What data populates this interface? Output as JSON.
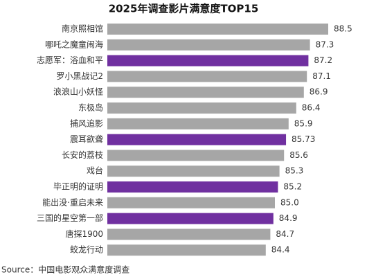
{
  "chart_data": {
    "type": "bar",
    "orientation": "horizontal",
    "title": "2025年调查影片满意度TOP15",
    "categories": [
      "南京照相馆",
      "哪吒之魔童闹海",
      "志愿军：浴血和平",
      "罗小黑战记2",
      "浪浪山小妖怪",
      "东极岛",
      "捕风追影",
      "震耳欲聋",
      "长安的荔枝",
      "戏台",
      "毕正明的证明",
      "能出没·重启未来",
      "三国的星空第一部",
      "唐探1900",
      "蛟龙行动"
    ],
    "values": [
      88.5,
      87.3,
      87.2,
      87.1,
      86.9,
      86.4,
      85.9,
      85.73,
      85.6,
      85.3,
      85.2,
      85.0,
      84.9,
      84.7,
      84.4
    ],
    "value_labels": [
      "88.5",
      "87.3",
      "87.2",
      "87.1",
      "86.9",
      "86.4",
      "85.9",
      "85.73",
      "85.6",
      "85.3",
      "85.2",
      "85.0",
      "84.9",
      "84.7",
      "84.4"
    ],
    "colors": [
      "#a6a6a6",
      "#a6a6a6",
      "#7030a0",
      "#a6a6a6",
      "#a6a6a6",
      "#a6a6a6",
      "#a6a6a6",
      "#7030a0",
      "#a6a6a6",
      "#a6a6a6",
      "#7030a0",
      "#a6a6a6",
      "#7030a0",
      "#a6a6a6",
      "#a6a6a6"
    ],
    "xlim": [
      74,
      89
    ],
    "source": "Source：中国电影观众满意度调查"
  }
}
